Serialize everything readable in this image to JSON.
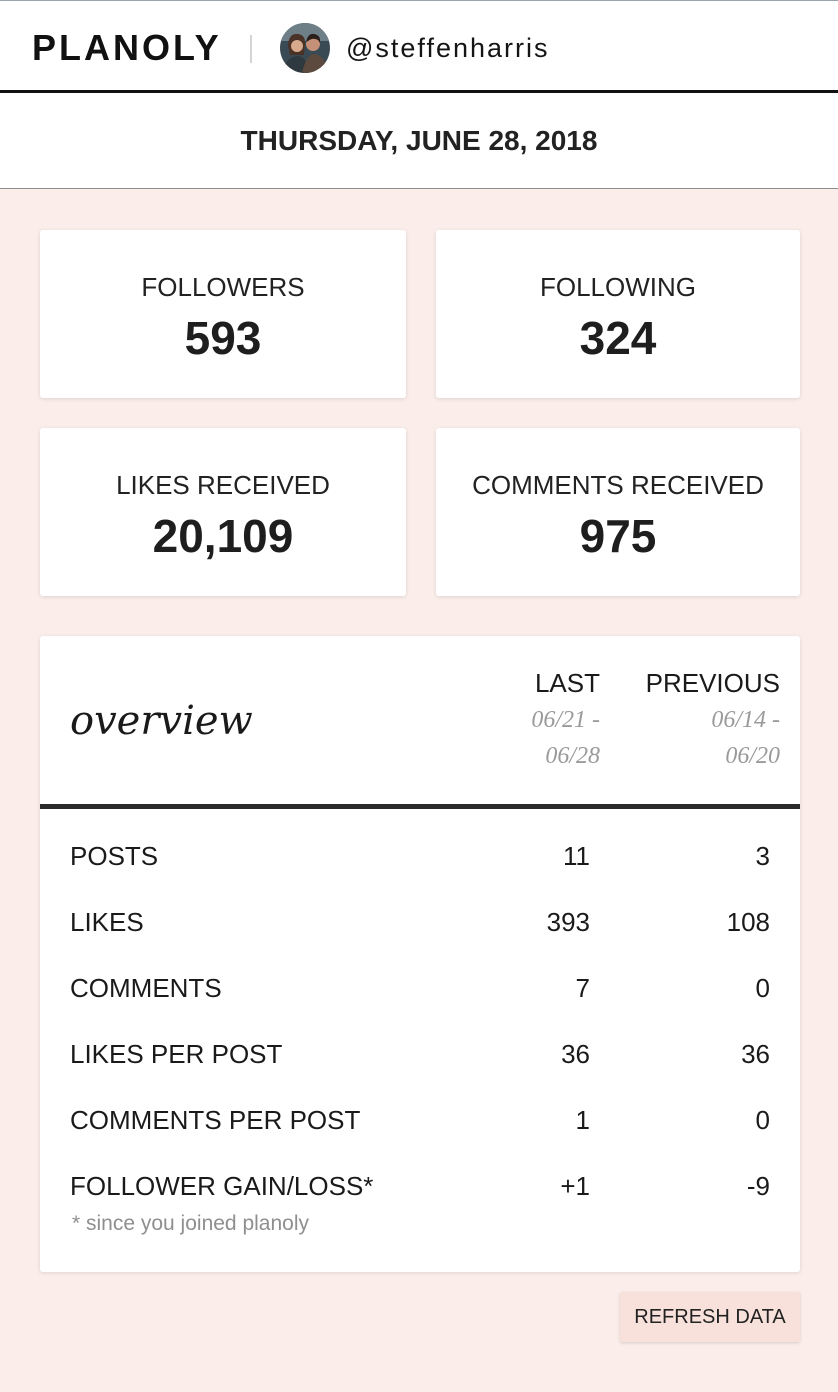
{
  "header": {
    "logo": "PLANOLY",
    "username": "@steffenharris",
    "avatar_icon": "user-avatar"
  },
  "date": "THURSDAY, JUNE 28, 2018",
  "stats": {
    "followers": {
      "label": "FOLLOWERS",
      "value": "593"
    },
    "following": {
      "label": "FOLLOWING",
      "value": "324"
    },
    "likes_received": {
      "label": "LIKES RECEIVED",
      "value": "20,109"
    },
    "comments_received": {
      "label": "COMMENTS RECEIVED",
      "value": "975"
    }
  },
  "overview": {
    "title": "overview",
    "columns": {
      "last": {
        "label": "LAST",
        "range_line1": "06/21 -",
        "range_line2": "06/28"
      },
      "previous": {
        "label": "PREVIOUS",
        "range_line1": "06/14 -",
        "range_line2": "06/20"
      }
    },
    "rows": [
      {
        "label": "POSTS",
        "last": "11",
        "previous": "3"
      },
      {
        "label": "LIKES",
        "last": "393",
        "previous": "108"
      },
      {
        "label": "COMMENTS",
        "last": "7",
        "previous": "0"
      },
      {
        "label": "LIKES PER POST",
        "last": "36",
        "previous": "36"
      },
      {
        "label": "COMMENTS PER POST",
        "last": "1",
        "previous": "0"
      },
      {
        "label": "FOLLOWER GAIN/LOSS*",
        "last": "+1",
        "previous": "-9"
      }
    ],
    "footnote": "* since you joined planoly"
  },
  "refresh_label": "REFRESH DATA",
  "colors": {
    "background": "#fbeeea",
    "card": "#ffffff",
    "button": "#f7e1da",
    "rule": "#2b2b2b"
  }
}
